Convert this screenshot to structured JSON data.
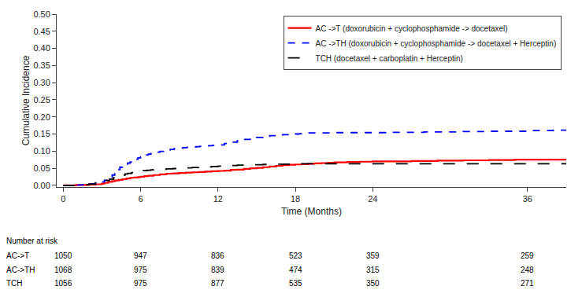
{
  "chart_data": {
    "type": "line",
    "line_shape": "steps-post",
    "xlabel": "Time (Months)",
    "ylabel": "Cumulative Incidence",
    "xlim": [
      -0.5,
      39
    ],
    "ylim": [
      -0.005,
      0.5
    ],
    "xticks": [
      0,
      6,
      12,
      18,
      24,
      36
    ],
    "yticks": [
      {
        "value": 0.0,
        "label": "0.00"
      },
      0.05,
      {
        "value": 0.1,
        "label": "0.10"
      },
      0.15,
      {
        "value": 0.2,
        "label": "0.20"
      },
      0.25,
      {
        "value": 0.3,
        "label": "0.30"
      },
      0.35,
      {
        "value": 0.4,
        "label": "0.40"
      },
      0.45,
      {
        "value": 0.5,
        "label": "0.50"
      }
    ],
    "grid": false,
    "legend": "upper right",
    "series": [
      {
        "name": "AC ->T (doxorubicin + cyclophosphamide -> docetaxel)",
        "color": "#ff0000",
        "line_style": "solid",
        "x": [
          0,
          0.5,
          1.0,
          1.5,
          2.0,
          2.5,
          3.0,
          3.2,
          3.5,
          3.8,
          4.0,
          4.3,
          4.6,
          4.9,
          5.2,
          5.5,
          5.8,
          6.0,
          6.3,
          6.6,
          7.0,
          7.5,
          8.0,
          8.5,
          9.0,
          9.5,
          10.0,
          10.5,
          11.0,
          11.5,
          12.0,
          12.5,
          13.0,
          13.5,
          14.0,
          14.5,
          15.0,
          15.5,
          16.0,
          16.5,
          17.0,
          17.5,
          18.0,
          18.5,
          19.0,
          19.5,
          20.0,
          20.5,
          21.0,
          22.0,
          23.0,
          24.0,
          25.0,
          26.0,
          27.0,
          28.0,
          29.0,
          30.0,
          31.0,
          32.0,
          33.0,
          34.0,
          35.0,
          36.0,
          37.0,
          38.0,
          39.0
        ],
        "values": [
          0,
          0.0,
          0.001,
          0.001,
          0.002,
          0.003,
          0.005,
          0.007,
          0.01,
          0.012,
          0.014,
          0.016,
          0.018,
          0.02,
          0.022,
          0.023,
          0.024,
          0.025,
          0.027,
          0.028,
          0.03,
          0.032,
          0.034,
          0.035,
          0.036,
          0.037,
          0.038,
          0.039,
          0.04,
          0.041,
          0.042,
          0.043,
          0.045,
          0.046,
          0.048,
          0.05,
          0.051,
          0.053,
          0.055,
          0.057,
          0.059,
          0.06,
          0.061,
          0.062,
          0.063,
          0.064,
          0.065,
          0.066,
          0.067,
          0.068,
          0.069,
          0.07,
          0.07,
          0.07,
          0.071,
          0.071,
          0.072,
          0.072,
          0.073,
          0.073,
          0.074,
          0.074,
          0.075,
          0.075,
          0.075,
          0.075,
          0.075
        ]
      },
      {
        "name": "AC ->TH (doxorubicin + cyclophosphamide -> docetaxel + Herceptin)",
        "color": "#0000ff",
        "line_style": "dashed",
        "x": [
          0,
          0.5,
          1.0,
          1.5,
          2.0,
          2.5,
          3.0,
          3.2,
          3.5,
          3.8,
          4.0,
          4.2,
          4.4,
          4.6,
          4.8,
          5.0,
          5.2,
          5.4,
          5.6,
          5.8,
          6.0,
          6.2,
          6.4,
          6.6,
          6.8,
          7.0,
          7.2,
          7.5,
          7.8,
          8.0,
          8.3,
          8.6,
          9.0,
          9.3,
          9.6,
          10.0,
          10.3,
          10.6,
          11.0,
          11.3,
          11.6,
          12.0,
          12.5,
          13.0,
          13.5,
          14.0,
          14.5,
          15.0,
          15.5,
          16.0,
          16.5,
          17.0,
          17.5,
          18.0,
          18.3,
          18.6,
          19.0,
          20.0,
          21.0,
          22.0,
          23.0,
          24.0,
          25.0,
          26.0,
          27.0,
          28.0,
          29.0,
          30.0,
          31.0,
          32.0,
          33.0,
          34.0,
          35.0,
          36.0,
          37.0,
          38.0,
          39.0
        ],
        "values": [
          0,
          0.0,
          0.001,
          0.002,
          0.004,
          0.006,
          0.01,
          0.015,
          0.022,
          0.03,
          0.038,
          0.046,
          0.053,
          0.058,
          0.062,
          0.065,
          0.068,
          0.072,
          0.076,
          0.08,
          0.083,
          0.086,
          0.089,
          0.091,
          0.093,
          0.095,
          0.097,
          0.099,
          0.101,
          0.103,
          0.105,
          0.107,
          0.109,
          0.11,
          0.111,
          0.112,
          0.113,
          0.114,
          0.115,
          0.116,
          0.117,
          0.118,
          0.122,
          0.126,
          0.13,
          0.134,
          0.137,
          0.14,
          0.143,
          0.145,
          0.147,
          0.148,
          0.149,
          0.15,
          0.151,
          0.152,
          0.153,
          0.153,
          0.154,
          0.154,
          0.154,
          0.154,
          0.155,
          0.155,
          0.155,
          0.156,
          0.156,
          0.156,
          0.157,
          0.157,
          0.158,
          0.158,
          0.158,
          0.16,
          0.16,
          0.161,
          0.162
        ]
      },
      {
        "name": "TCH (docetaxel + carboplatin + Herceptin)",
        "color": "#000000",
        "line_style": "longdash",
        "x": [
          0,
          0.5,
          1.0,
          1.5,
          2.0,
          2.5,
          3.0,
          3.3,
          3.6,
          3.9,
          4.2,
          4.5,
          4.8,
          5.0,
          5.3,
          5.6,
          5.9,
          6.2,
          6.5,
          6.8,
          7.0,
          7.5,
          8.0,
          8.5,
          9.0,
          9.5,
          10.0,
          10.5,
          11.0,
          11.5,
          12.0,
          12.5,
          13.0,
          13.5,
          14.0,
          14.5,
          15.0,
          15.5,
          16.0,
          16.5,
          17.0,
          17.5,
          18.0,
          18.5,
          19.0,
          19.5,
          20.0,
          21.0,
          22.0,
          23.0,
          24.0,
          25.0,
          26.0,
          27.0,
          28.0,
          29.0,
          30.0,
          31.0,
          32.0,
          33.0,
          34.0,
          35.0,
          36.0,
          37.0,
          38.0,
          39.0
        ],
        "values": [
          0,
          0.0,
          0.001,
          0.002,
          0.004,
          0.007,
          0.01,
          0.014,
          0.018,
          0.022,
          0.026,
          0.03,
          0.033,
          0.035,
          0.037,
          0.039,
          0.041,
          0.043,
          0.044,
          0.045,
          0.046,
          0.047,
          0.048,
          0.049,
          0.05,
          0.051,
          0.052,
          0.053,
          0.054,
          0.055,
          0.056,
          0.057,
          0.058,
          0.059,
          0.06,
          0.06,
          0.06,
          0.061,
          0.061,
          0.062,
          0.062,
          0.062,
          0.062,
          0.063,
          0.063,
          0.063,
          0.063,
          0.063,
          0.063,
          0.063,
          0.063,
          0.063,
          0.063,
          0.063,
          0.063,
          0.063,
          0.063,
          0.063,
          0.063,
          0.063,
          0.063,
          0.063,
          0.063,
          0.063,
          0.063,
          0.063
        ]
      }
    ],
    "number_at_risk": {
      "label": "Number at risk",
      "times": [
        0,
        6,
        12,
        18,
        24,
        36
      ],
      "groups": [
        {
          "name": "AC->T",
          "values": [
            1050,
            947,
            836,
            523,
            359,
            259
          ]
        },
        {
          "name": "AC->TH",
          "values": [
            1068,
            975,
            839,
            474,
            315,
            248
          ]
        },
        {
          "name": "TCH",
          "values": [
            1056,
            975,
            877,
            535,
            350,
            271
          ]
        }
      ]
    }
  }
}
